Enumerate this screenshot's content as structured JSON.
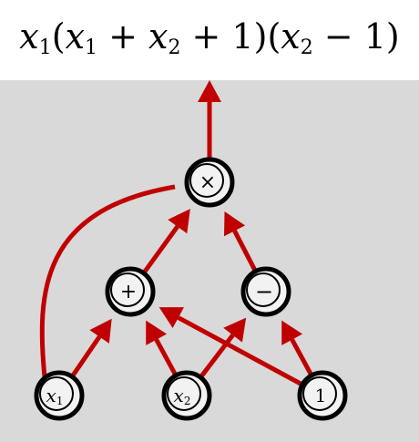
{
  "formula": {
    "parts": [
      {
        "t": "x",
        "italic": true
      },
      {
        "sub": "1"
      },
      {
        "t": "("
      },
      {
        "t": "x",
        "italic": true
      },
      {
        "sub": "1"
      },
      {
        "t": " + "
      },
      {
        "t": "x",
        "italic": true
      },
      {
        "sub": "2"
      },
      {
        "t": " + 1)("
      },
      {
        "t": "x",
        "italic": true
      },
      {
        "sub": "2"
      },
      {
        "t": " − 1)"
      }
    ]
  },
  "nodes": [
    {
      "id": "times",
      "label": "×"
    },
    {
      "id": "plus",
      "label": "+"
    },
    {
      "id": "minus",
      "label": "−"
    },
    {
      "id": "x1",
      "label": "x",
      "sub": "1"
    },
    {
      "id": "x2",
      "label": "x",
      "sub": "2"
    },
    {
      "id": "one",
      "label": "1"
    }
  ],
  "edges": [
    {
      "from": "x1",
      "to": "times"
    },
    {
      "from": "x1",
      "to": "plus"
    },
    {
      "from": "x2",
      "to": "plus"
    },
    {
      "from": "x2",
      "to": "minus"
    },
    {
      "from": "one",
      "to": "plus"
    },
    {
      "from": "one",
      "to": "minus"
    },
    {
      "from": "plus",
      "to": "times"
    },
    {
      "from": "minus",
      "to": "times"
    },
    {
      "from": "times",
      "to": "output"
    }
  ],
  "colors": {
    "arrow": "#c00000",
    "panel": "#d9d9d9",
    "node_fill": "#f2f2f2",
    "node_stroke": "#000000"
  }
}
